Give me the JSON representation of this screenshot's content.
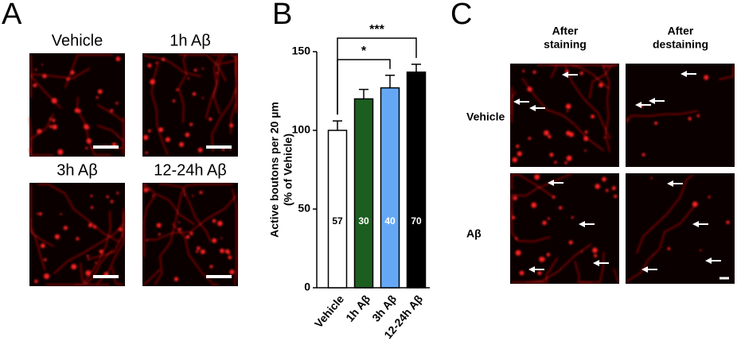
{
  "chart_data": {
    "type": "bar",
    "categories": [
      "Vehicle",
      "1h Aβ",
      "3h Aβ",
      "12-24h Aβ"
    ],
    "values": [
      100,
      120,
      127,
      137
    ],
    "errors": [
      6,
      6,
      8,
      5
    ],
    "colors": [
      "#ffffff",
      "#1b5e20",
      "#64a8f5",
      "#000000"
    ],
    "bar_annotations": [
      57,
      30,
      40,
      70
    ],
    "ylabel": [
      "Active boutons per 20 µm",
      "(% of Vehicle)"
    ],
    "ylim": [
      0,
      150
    ],
    "yticks": [
      0,
      50,
      100,
      150
    ],
    "significance": [
      {
        "from": "Vehicle",
        "to": "12-24h Aβ",
        "label": "***"
      },
      {
        "from": "Vehicle",
        "to": "3h Aβ",
        "label": "*"
      }
    ]
  },
  "panel_a": {
    "letter": "A",
    "images": [
      "Vehicle",
      "1h Aβ",
      "3h Aβ",
      "12-24h Aβ"
    ]
  },
  "panel_b": {
    "letter": "B"
  },
  "panel_c": {
    "letter": "C",
    "columns": [
      [
        "After",
        "staining"
      ],
      [
        "After",
        "destaining"
      ]
    ],
    "rows": [
      "Vehicle",
      "Aβ"
    ]
  }
}
